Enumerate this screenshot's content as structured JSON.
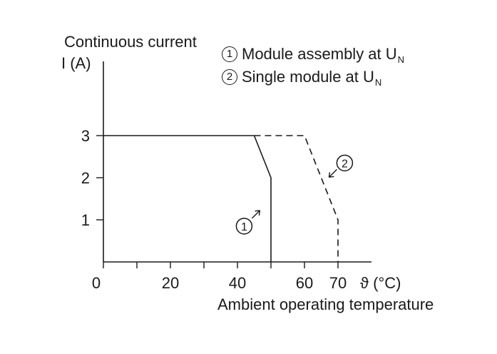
{
  "chart_data": {
    "type": "line",
    "ylabel_line1": "Continuous current",
    "ylabel_line2": "I (A)",
    "xlabel": "Ambient operating temperature",
    "x_unit_label": "ϑ (°C)",
    "xlim": [
      0,
      80
    ],
    "ylim": [
      0,
      5
    ],
    "x_ticks": [
      0,
      10,
      20,
      30,
      40,
      50,
      60,
      70
    ],
    "x_tick_labels": [
      "0",
      "20",
      "40",
      "60",
      "70"
    ],
    "x_tick_label_values": [
      0,
      20,
      40,
      60,
      70
    ],
    "y_ticks": [
      1,
      2,
      3
    ],
    "y_tick_labels": [
      "1",
      "2",
      "3"
    ],
    "grid": false,
    "legend_position": "top-right",
    "series": [
      {
        "name": "Module assembly at U",
        "marker": "1",
        "style": "solid",
        "x": [
          0,
          45,
          50,
          50
        ],
        "y": [
          3,
          3,
          2,
          0
        ]
      },
      {
        "name": "Single module at U",
        "marker": "2",
        "style": "dashed",
        "x": [
          45,
          60,
          70,
          70
        ],
        "y": [
          3,
          3,
          1,
          0
        ]
      }
    ],
    "legend": [
      {
        "marker": "1",
        "text": "Module assembly at U",
        "subscript": "N"
      },
      {
        "marker": "2",
        "text": "Single module at U",
        "subscript": "N"
      }
    ],
    "annotations": [
      {
        "marker": "1",
        "x": 42,
        "y": 0.85
      },
      {
        "marker": "2",
        "x": 72,
        "y": 2.35
      }
    ]
  }
}
